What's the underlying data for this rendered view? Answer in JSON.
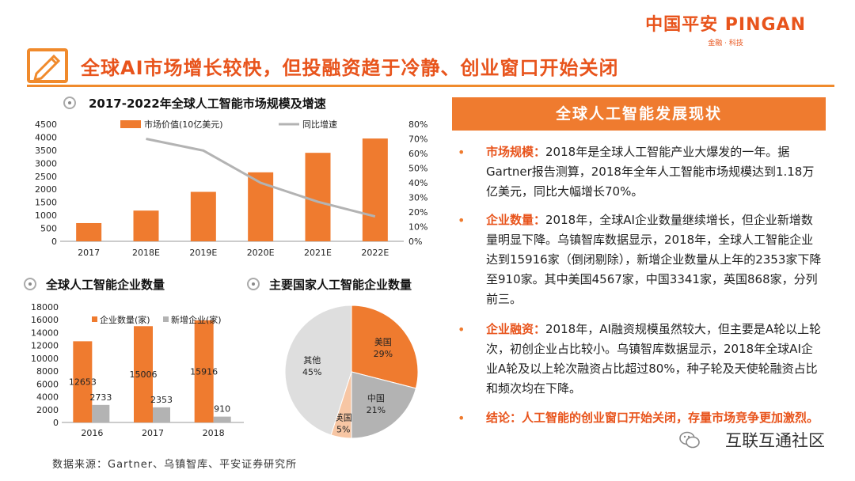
{
  "brand": {
    "name": "中国平安 PINGAN",
    "sub": "金融 · 科技"
  },
  "page_title": "全球AI市场增长较快，但投融资趋于冷静、创业窗口开始关闭",
  "colors": {
    "accent": "#e8541c",
    "orange": "#ef7b2f",
    "gray": "#b0b0b0"
  },
  "icons": {
    "title": "pencil-icon",
    "section": "circle-bullet-icon",
    "watermark": "wechat-icon"
  },
  "section_titles": {
    "market": "2017-2022年全球人工智能市场规模及增速",
    "enterprise": "全球人工智能企业数量",
    "countries": "主要国家人工智能企业数量"
  },
  "panel": {
    "title": "全球人工智能发展现状",
    "items": [
      {
        "label": "市场规模：",
        "text": "2018年是全球人工智能产业大爆发的一年。据Gartner报告测算，2018年全年人工智能市场规模达到1.18万亿美元，同比大幅增长70%。"
      },
      {
        "label": "企业数量：",
        "text": "2018年，全球AI企业数量继续增长，但企业新增数量明显下降。乌镇智库数据显示，2018年，全球人工智能企业达到15916家（倒闭剔除），新增企业数量从上年的2353家下降至910家。其中美国4567家，中国3341家，英国868家，分列前三。"
      },
      {
        "label": "企业融资：",
        "text": "2018年，AI融资规模虽然较大，但主要是A轮以上轮次，初创企业占比较小。乌镇智库数据显示，2018年全球AI企业A轮及以上轮次融资占比超过80%，种子轮及天使轮融资占比和频次均在下降。"
      },
      {
        "label": "",
        "text": "结论：人工智能的创业窗口开始关闭，存量市场竞争更加激烈。"
      }
    ]
  },
  "source": "数据来源：Gartner、乌镇智库、平安证券研究所",
  "watermark": "互联互通社区",
  "chart_data": [
    {
      "type": "bar",
      "title": "2017-2022年全球人工智能市场规模及增速",
      "categories": [
        "2017",
        "2018E",
        "2019E",
        "2020E",
        "2021E",
        "2022E"
      ],
      "series": [
        {
          "name": "市场价值(10亿美元)",
          "type": "bar",
          "values": [
            700,
            1180,
            1900,
            2650,
            3400,
            3950
          ],
          "color": "#ef7b2f"
        },
        {
          "name": "同比增速",
          "type": "line",
          "axis": "right",
          "values": [
            null,
            0.7,
            0.62,
            0.4,
            0.27,
            0.17
          ],
          "color": "#b3b3b3"
        }
      ],
      "y_ticks": [
        "4500",
        "4000",
        "3500",
        "3000",
        "2500",
        "2000",
        "1500",
        "1000",
        "500",
        "0"
      ],
      "y2_ticks": [
        "80%",
        "70%",
        "60%",
        "50%",
        "40%",
        "30%",
        "20%",
        "10%",
        "0%"
      ],
      "ylim": [
        0,
        4500
      ],
      "y2lim": [
        0,
        0.8
      ],
      "legend": "top"
    },
    {
      "type": "bar",
      "title": "全球人工智能企业数量",
      "categories": [
        "2016",
        "2017",
        "2018"
      ],
      "series": [
        {
          "name": "企业数量(家)",
          "values": [
            12653,
            15006,
            15916
          ],
          "labels": [
            "12653",
            "15006",
            "15916"
          ],
          "color": "#ef7b2f"
        },
        {
          "name": "新增企业(家)",
          "values": [
            2733,
            2353,
            910
          ],
          "labels": [
            "2733",
            "2353",
            "910"
          ],
          "color": "#b3b3b3"
        }
      ],
      "y_ticks": [
        "18000",
        "16000",
        "14000",
        "12000",
        "10000",
        "8000",
        "6000",
        "4000",
        "2000",
        "0"
      ],
      "ylim": [
        0,
        18000
      ],
      "legend": "top"
    },
    {
      "type": "pie",
      "title": "主要国家人工智能企业数量",
      "slices": [
        {
          "name": "美国",
          "value": 29,
          "label": "29%",
          "color": "#ef7b2f"
        },
        {
          "name": "中国",
          "value": 21,
          "label": "21%",
          "color": "#b3b3b3"
        },
        {
          "name": "英国",
          "value": 5,
          "label": "5%",
          "color": "#f7c6a4"
        },
        {
          "name": "其他",
          "value": 45,
          "label": "45%",
          "color": "#dedede"
        }
      ]
    }
  ]
}
